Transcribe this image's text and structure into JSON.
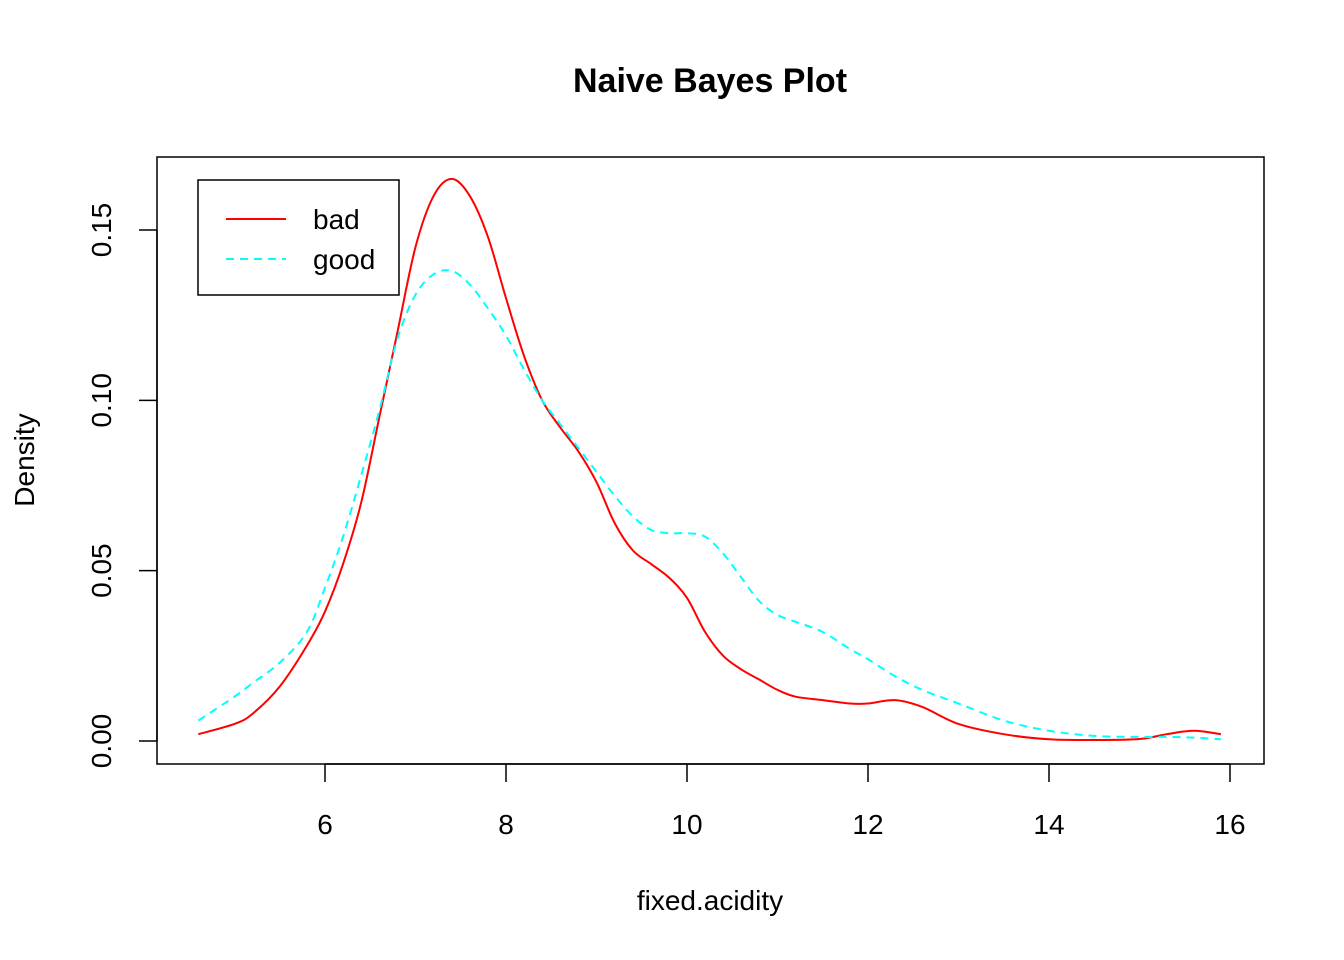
{
  "chart_data": {
    "type": "line",
    "title": "Naive Bayes Plot",
    "xlabel": "fixed.acidity",
    "ylabel": "Density",
    "xlim": [
      4.6,
      15.9
    ],
    "ylim": [
      0,
      0.165
    ],
    "x_ticks": [
      6,
      8,
      10,
      12,
      14,
      16
    ],
    "x_tick_labels": [
      "6",
      "8",
      "10",
      "12",
      "14",
      "16"
    ],
    "y_ticks": [
      0.0,
      0.05,
      0.1,
      0.15
    ],
    "y_tick_labels": [
      "0.00",
      "0.05",
      "0.10",
      "0.15"
    ],
    "grid": false,
    "legend": {
      "position": "top-left",
      "entries": [
        "bad",
        "good"
      ]
    },
    "series": [
      {
        "name": "bad",
        "color": "#ff0000",
        "dash": "solid",
        "x": [
          4.6,
          5.0,
          5.2,
          5.5,
          5.8,
          6.0,
          6.2,
          6.4,
          6.6,
          6.8,
          7.0,
          7.2,
          7.4,
          7.6,
          7.8,
          8.0,
          8.2,
          8.4,
          8.6,
          8.8,
          9.0,
          9.2,
          9.4,
          9.6,
          9.8,
          10.0,
          10.2,
          10.4,
          10.6,
          10.8,
          11.0,
          11.2,
          11.5,
          11.8,
          12.0,
          12.3,
          12.6,
          13.0,
          13.5,
          14.0,
          14.5,
          15.0,
          15.3,
          15.6,
          15.9
        ],
        "y": [
          0.002,
          0.005,
          0.008,
          0.016,
          0.028,
          0.038,
          0.052,
          0.07,
          0.095,
          0.12,
          0.145,
          0.16,
          0.165,
          0.16,
          0.148,
          0.13,
          0.113,
          0.1,
          0.092,
          0.085,
          0.076,
          0.064,
          0.056,
          0.052,
          0.048,
          0.042,
          0.032,
          0.025,
          0.021,
          0.018,
          0.015,
          0.013,
          0.012,
          0.011,
          0.011,
          0.012,
          0.01,
          0.005,
          0.002,
          0.0005,
          0.0003,
          0.0006,
          0.002,
          0.003,
          0.002
        ]
      },
      {
        "name": "good",
        "color": "#00ffff",
        "dash": "dashed",
        "x": [
          4.6,
          5.0,
          5.2,
          5.5,
          5.8,
          6.0,
          6.2,
          6.4,
          6.6,
          6.8,
          7.0,
          7.2,
          7.4,
          7.6,
          7.8,
          8.0,
          8.2,
          8.4,
          8.6,
          8.8,
          9.0,
          9.2,
          9.4,
          9.6,
          9.8,
          10.0,
          10.2,
          10.4,
          10.6,
          10.8,
          11.0,
          11.2,
          11.5,
          11.8,
          12.0,
          12.3,
          12.6,
          13.0,
          13.5,
          14.0,
          14.5,
          15.0,
          15.3,
          15.6,
          15.9
        ],
        "y": [
          0.006,
          0.013,
          0.017,
          0.023,
          0.032,
          0.045,
          0.06,
          0.078,
          0.097,
          0.118,
          0.131,
          0.137,
          0.138,
          0.134,
          0.127,
          0.119,
          0.109,
          0.1,
          0.093,
          0.086,
          0.079,
          0.072,
          0.066,
          0.062,
          0.061,
          0.061,
          0.06,
          0.055,
          0.048,
          0.041,
          0.037,
          0.035,
          0.032,
          0.027,
          0.024,
          0.019,
          0.015,
          0.011,
          0.006,
          0.003,
          0.0015,
          0.0012,
          0.0012,
          0.001,
          0.0005
        ]
      }
    ]
  }
}
